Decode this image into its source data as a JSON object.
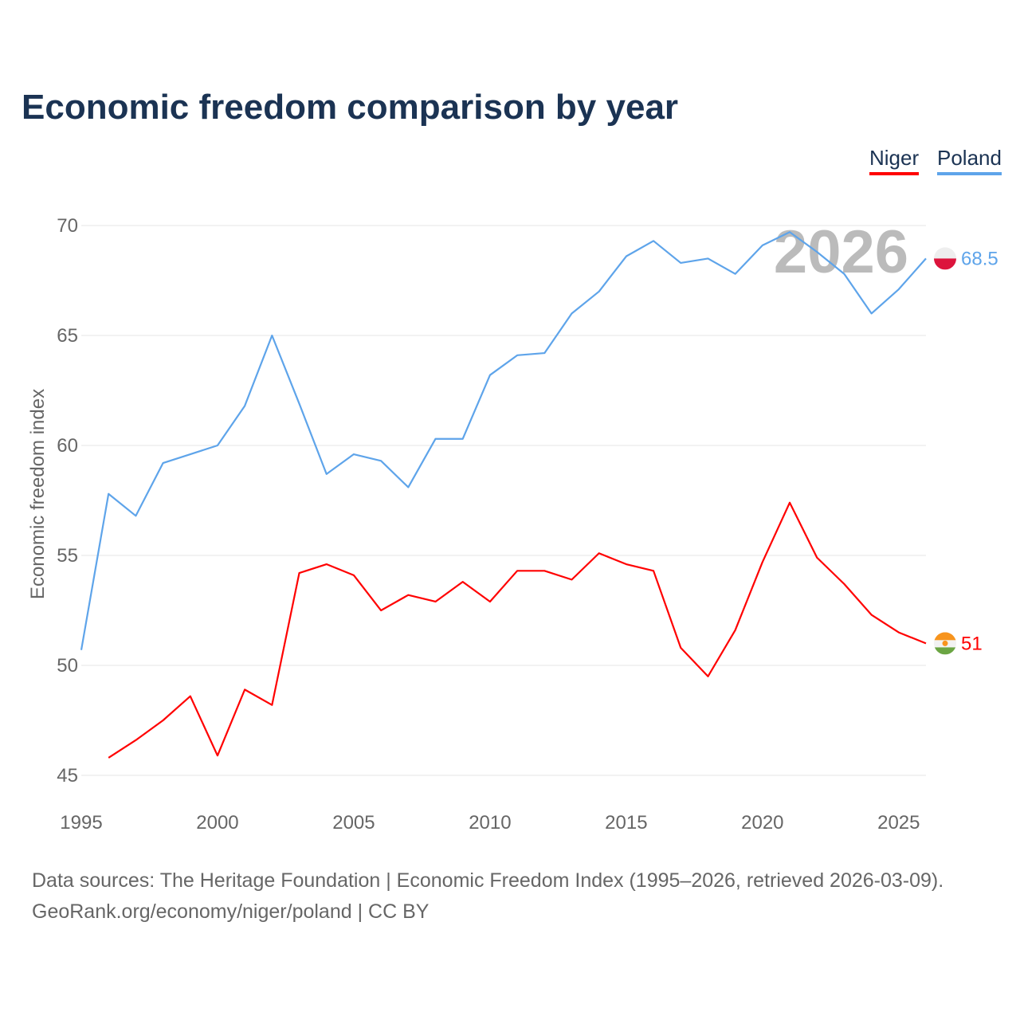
{
  "title": "Economic freedom comparison by year",
  "footer": {
    "line1": "Data sources: The Heritage Foundation | Economic Freedom Index (1995–2026, retrieved 2026-03-09).",
    "line2": "GeoRank.org/economy/niger/poland | CC BY"
  },
  "chart_data": {
    "type": "line",
    "title": "Economic freedom comparison by year",
    "xlabel": "",
    "ylabel": "Economic freedom index",
    "xlim": [
      1995,
      2026
    ],
    "ylim": [
      45,
      70
    ],
    "xticks": [
      "1995",
      "2000",
      "2005",
      "2010",
      "2015",
      "2020",
      "2025"
    ],
    "yticks": [
      "45",
      "50",
      "55",
      "60",
      "65",
      "70"
    ],
    "grid": true,
    "legend_placement": "top-right",
    "year_label": "2026",
    "series": [
      {
        "name": "Niger",
        "color": "#ff0000",
        "end_label": "51",
        "flag": "niger-flag",
        "x": [
          1996,
          1997,
          1998,
          1999,
          2000,
          2001,
          2002,
          2003,
          2004,
          2005,
          2006,
          2007,
          2008,
          2009,
          2010,
          2011,
          2012,
          2013,
          2014,
          2015,
          2016,
          2017,
          2018,
          2019,
          2020,
          2021,
          2022,
          2023,
          2024,
          2025,
          2026
        ],
        "values": [
          45.8,
          46.6,
          47.5,
          48.6,
          45.9,
          48.9,
          48.2,
          54.2,
          54.6,
          54.1,
          52.5,
          53.2,
          52.9,
          53.8,
          52.9,
          54.3,
          54.3,
          53.9,
          55.1,
          54.6,
          54.3,
          50.8,
          49.5,
          51.6,
          54.7,
          57.4,
          54.9,
          53.7,
          52.3,
          51.5,
          51.0
        ]
      },
      {
        "name": "Poland",
        "color": "#5ea4ea",
        "end_label": "68.5",
        "flag": "poland-flag",
        "x": [
          1995,
          1996,
          1997,
          1998,
          1999,
          2000,
          2001,
          2002,
          2003,
          2004,
          2005,
          2006,
          2007,
          2008,
          2009,
          2010,
          2011,
          2012,
          2013,
          2014,
          2015,
          2016,
          2017,
          2018,
          2019,
          2020,
          2021,
          2022,
          2023,
          2024,
          2025,
          2026
        ],
        "values": [
          50.7,
          57.8,
          56.8,
          59.2,
          59.6,
          60.0,
          61.8,
          65.0,
          61.9,
          58.7,
          59.6,
          59.3,
          58.1,
          60.3,
          60.3,
          63.2,
          64.1,
          64.2,
          66.0,
          67.0,
          68.6,
          69.3,
          68.3,
          68.5,
          67.8,
          69.1,
          69.7,
          68.8,
          67.8,
          66.0,
          67.1,
          68.5
        ]
      }
    ]
  }
}
